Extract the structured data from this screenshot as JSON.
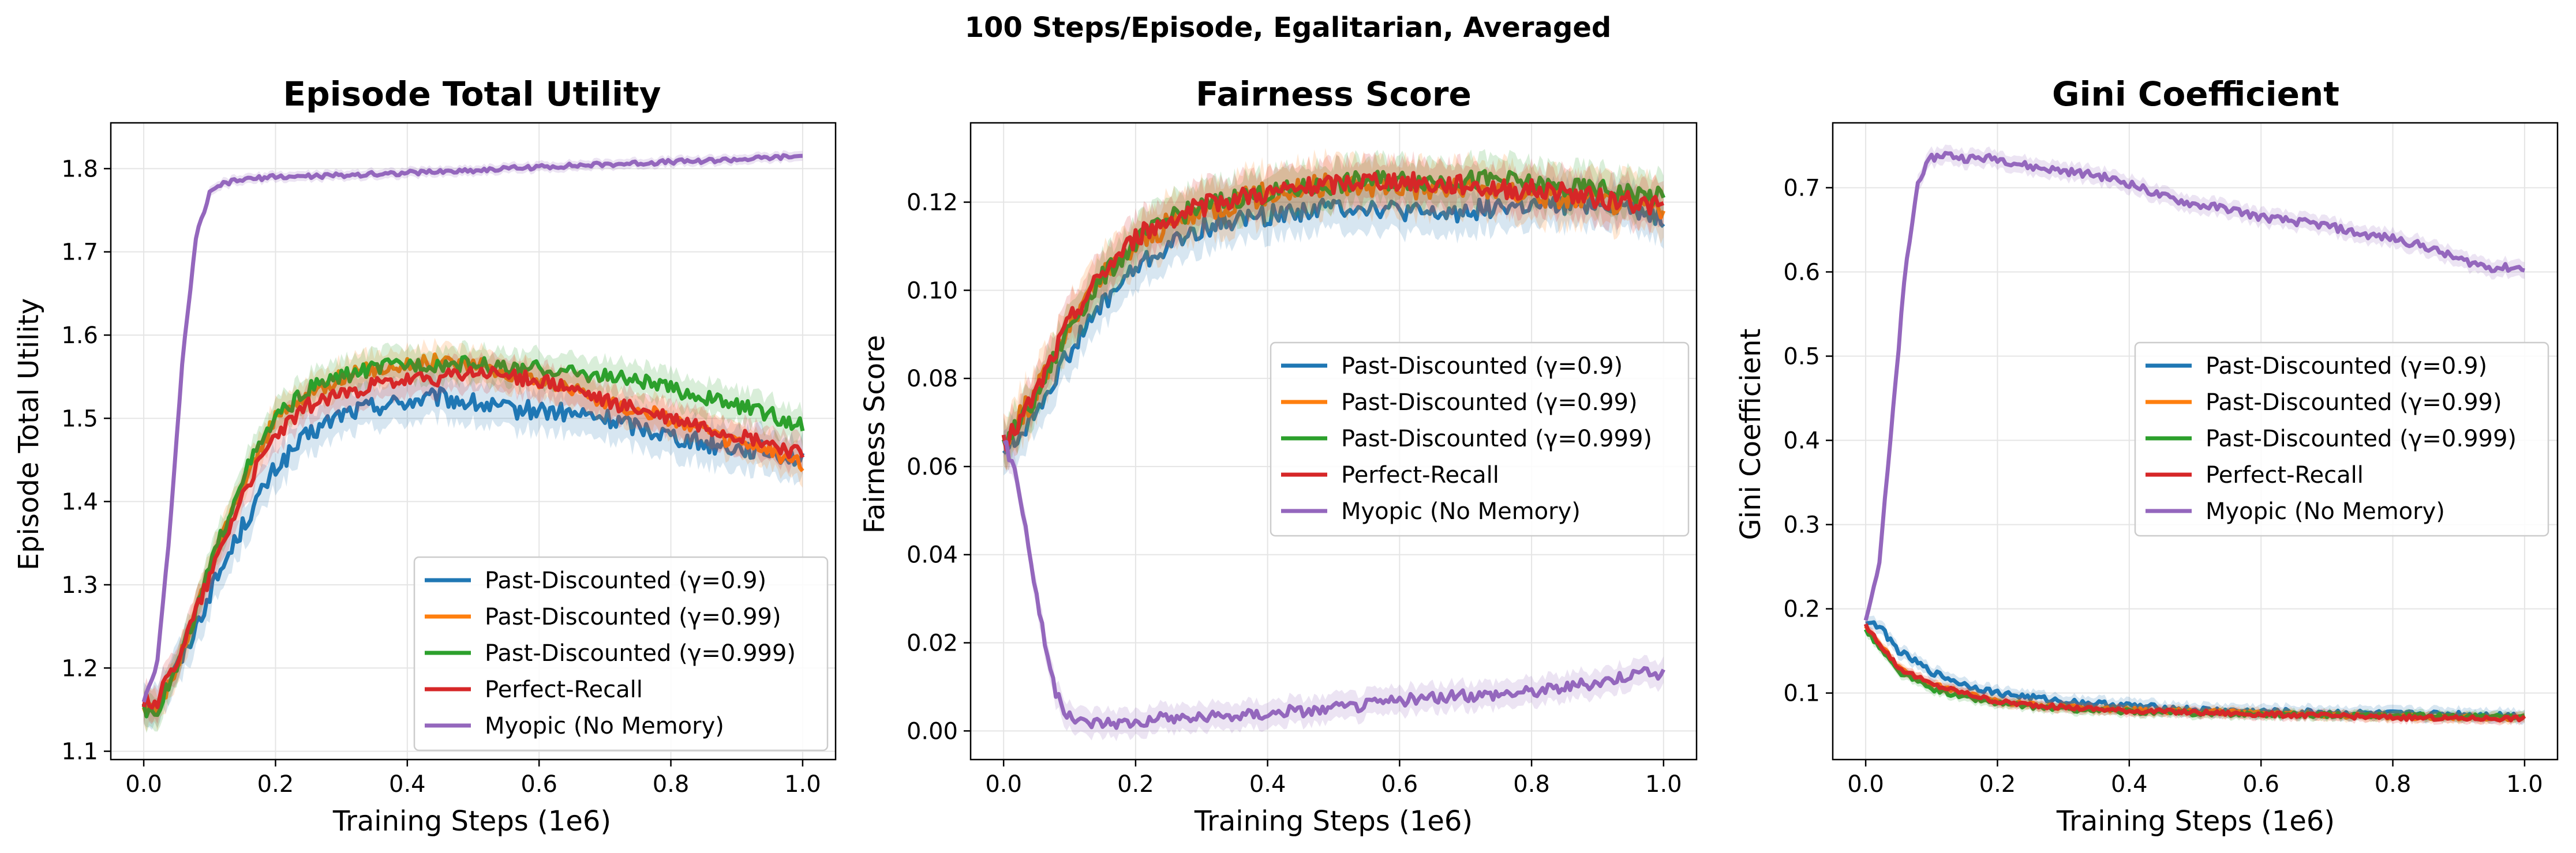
{
  "figure_title": "100 Steps/Episode, Egalitarian, Averaged",
  "series_colors": {
    "Past-Discounted (γ=0.9)": "#1f77b4",
    "Past-Discounted (γ=0.99)": "#ff7f0e",
    "Past-Discounted (γ=0.999)": "#2ca02c",
    "Perfect-Recall": "#d62728",
    "Myopic (No Memory)": "#9467bd"
  },
  "chart_data": [
    {
      "type": "line",
      "title": "Episode Total Utility",
      "xlabel": "Training Steps (1e6)",
      "ylabel": "Episode Total Utility",
      "xlim": [
        -0.05,
        1.05
      ],
      "ylim": [
        1.09,
        1.855
      ],
      "xticks": [
        "0.0",
        "0.2",
        "0.4",
        "0.6",
        "0.8",
        "1.0"
      ],
      "yticks": [
        "1.1",
        "1.2",
        "1.3",
        "1.4",
        "1.5",
        "1.6",
        "1.7",
        "1.8"
      ],
      "grid": true,
      "legend": "lower-right",
      "series": [
        {
          "name": "Past-Discounted (γ=0.9)",
          "band": 0.025,
          "x": [
            0,
            0.02,
            0.05,
            0.08,
            0.1,
            0.15,
            0.2,
            0.25,
            0.3,
            0.35,
            0.4,
            0.45,
            0.5,
            0.55,
            0.6,
            0.65,
            0.7,
            0.75,
            0.8,
            0.85,
            0.9,
            0.95,
            1.0
          ],
          "y": [
            1.16,
            1.16,
            1.2,
            1.25,
            1.29,
            1.37,
            1.44,
            1.48,
            1.505,
            1.515,
            1.52,
            1.525,
            1.518,
            1.51,
            1.51,
            1.505,
            1.5,
            1.49,
            1.48,
            1.47,
            1.465,
            1.46,
            1.45
          ]
        },
        {
          "name": "Past-Discounted (γ=0.99)",
          "band": 0.02,
          "x": [
            0,
            0.02,
            0.05,
            0.08,
            0.1,
            0.15,
            0.2,
            0.25,
            0.3,
            0.35,
            0.4,
            0.45,
            0.5,
            0.55,
            0.6,
            0.65,
            0.7,
            0.75,
            0.8,
            0.85,
            0.9,
            0.95,
            1.0
          ],
          "y": [
            1.15,
            1.15,
            1.2,
            1.27,
            1.32,
            1.42,
            1.5,
            1.53,
            1.55,
            1.56,
            1.565,
            1.57,
            1.565,
            1.555,
            1.545,
            1.535,
            1.52,
            1.51,
            1.5,
            1.485,
            1.47,
            1.46,
            1.445
          ]
        },
        {
          "name": "Past-Discounted (γ=0.999)",
          "band": 0.02,
          "x": [
            0,
            0.02,
            0.05,
            0.08,
            0.1,
            0.15,
            0.2,
            0.25,
            0.3,
            0.35,
            0.4,
            0.45,
            0.5,
            0.55,
            0.6,
            0.65,
            0.7,
            0.75,
            0.8,
            0.85,
            0.9,
            0.95,
            1.0
          ],
          "y": [
            1.15,
            1.15,
            1.2,
            1.27,
            1.32,
            1.43,
            1.5,
            1.535,
            1.55,
            1.56,
            1.565,
            1.565,
            1.565,
            1.56,
            1.56,
            1.555,
            1.55,
            1.545,
            1.535,
            1.525,
            1.515,
            1.505,
            1.49
          ]
        },
        {
          "name": "Perfect-Recall",
          "band": 0.02,
          "x": [
            0,
            0.02,
            0.05,
            0.08,
            0.1,
            0.15,
            0.2,
            0.25,
            0.3,
            0.35,
            0.4,
            0.45,
            0.5,
            0.55,
            0.6,
            0.65,
            0.7,
            0.75,
            0.8,
            0.85,
            0.9,
            0.95,
            1.0
          ],
          "y": [
            1.16,
            1.16,
            1.21,
            1.27,
            1.31,
            1.41,
            1.48,
            1.515,
            1.53,
            1.54,
            1.545,
            1.548,
            1.555,
            1.552,
            1.545,
            1.535,
            1.52,
            1.51,
            1.5,
            1.49,
            1.48,
            1.47,
            1.455
          ]
        },
        {
          "name": "Myopic (No Memory)",
          "band": 0.006,
          "x": [
            0,
            0.02,
            0.04,
            0.06,
            0.08,
            0.1,
            0.12,
            0.15,
            0.2,
            0.3,
            0.4,
            0.5,
            0.6,
            0.7,
            0.8,
            0.9,
            1.0
          ],
          "y": [
            1.16,
            1.2,
            1.37,
            1.58,
            1.72,
            1.77,
            1.782,
            1.787,
            1.79,
            1.792,
            1.795,
            1.798,
            1.802,
            1.805,
            1.808,
            1.811,
            1.815
          ]
        }
      ]
    },
    {
      "type": "line",
      "title": "Fairness Score",
      "xlabel": "Training Steps (1e6)",
      "ylabel": "Fairness Score",
      "xlim": [
        -0.05,
        1.05
      ],
      "ylim": [
        -0.0065,
        0.138
      ],
      "xticks": [
        "0.0",
        "0.2",
        "0.4",
        "0.6",
        "0.8",
        "1.0"
      ],
      "yticks": [
        "0.00",
        "0.02",
        "0.04",
        "0.06",
        "0.08",
        "0.10",
        "0.12"
      ],
      "grid": true,
      "legend": "center-right",
      "series": [
        {
          "name": "Past-Discounted (γ=0.9)",
          "band": 0.005,
          "x": [
            0,
            0.02,
            0.05,
            0.1,
            0.15,
            0.2,
            0.25,
            0.3,
            0.35,
            0.4,
            0.45,
            0.5,
            0.55,
            0.6,
            0.65,
            0.7,
            0.75,
            0.8,
            0.85,
            0.9,
            0.95,
            1.0
          ],
          "y": [
            0.064,
            0.066,
            0.073,
            0.086,
            0.097,
            0.105,
            0.11,
            0.114,
            0.116,
            0.117,
            0.118,
            0.119,
            0.119,
            0.118,
            0.117,
            0.118,
            0.119,
            0.119,
            0.119,
            0.12,
            0.119,
            0.116
          ]
        },
        {
          "name": "Past-Discounted (γ=0.99)",
          "band": 0.006,
          "x": [
            0,
            0.02,
            0.05,
            0.1,
            0.15,
            0.2,
            0.25,
            0.3,
            0.35,
            0.4,
            0.45,
            0.5,
            0.55,
            0.6,
            0.65,
            0.7,
            0.75,
            0.8,
            0.85,
            0.9,
            0.95,
            1.0
          ],
          "y": [
            0.066,
            0.07,
            0.077,
            0.092,
            0.103,
            0.11,
            0.115,
            0.118,
            0.12,
            0.122,
            0.123,
            0.124,
            0.124,
            0.124,
            0.123,
            0.123,
            0.123,
            0.122,
            0.121,
            0.12,
            0.12,
            0.119
          ]
        },
        {
          "name": "Past-Discounted (γ=0.999)",
          "band": 0.005,
          "x": [
            0,
            0.02,
            0.05,
            0.1,
            0.15,
            0.2,
            0.25,
            0.3,
            0.35,
            0.4,
            0.45,
            0.5,
            0.55,
            0.6,
            0.65,
            0.7,
            0.75,
            0.8,
            0.85,
            0.9,
            0.95,
            1.0
          ],
          "y": [
            0.065,
            0.069,
            0.076,
            0.092,
            0.103,
            0.111,
            0.116,
            0.119,
            0.121,
            0.122,
            0.123,
            0.124,
            0.125,
            0.125,
            0.125,
            0.125,
            0.125,
            0.124,
            0.123,
            0.123,
            0.122,
            0.121
          ]
        },
        {
          "name": "Perfect-Recall",
          "band": 0.005,
          "x": [
            0,
            0.02,
            0.05,
            0.1,
            0.15,
            0.2,
            0.25,
            0.3,
            0.35,
            0.4,
            0.45,
            0.5,
            0.55,
            0.6,
            0.65,
            0.7,
            0.75,
            0.8,
            0.85,
            0.9,
            0.95,
            1.0
          ],
          "y": [
            0.065,
            0.069,
            0.077,
            0.093,
            0.104,
            0.112,
            0.116,
            0.119,
            0.121,
            0.122,
            0.123,
            0.124,
            0.125,
            0.125,
            0.124,
            0.124,
            0.123,
            0.123,
            0.122,
            0.121,
            0.12,
            0.119
          ]
        },
        {
          "name": "Myopic (No Memory)",
          "band": 0.003,
          "x": [
            0,
            0.02,
            0.04,
            0.06,
            0.08,
            0.1,
            0.12,
            0.15,
            0.2,
            0.25,
            0.3,
            0.4,
            0.5,
            0.6,
            0.7,
            0.8,
            0.9,
            0.95,
            1.0
          ],
          "y": [
            0.066,
            0.058,
            0.04,
            0.022,
            0.008,
            0.003,
            0.002,
            0.002,
            0.002,
            0.003,
            0.003,
            0.004,
            0.005,
            0.007,
            0.008,
            0.009,
            0.011,
            0.013,
            0.013
          ]
        }
      ]
    },
    {
      "type": "line",
      "title": "Gini Coefficient",
      "xlabel": "Training Steps (1e6)",
      "ylabel": "Gini Coefficient",
      "xlim": [
        -0.05,
        1.05
      ],
      "ylim": [
        0.021,
        0.777
      ],
      "xticks": [
        "0.0",
        "0.2",
        "0.4",
        "0.6",
        "0.8",
        "1.0"
      ],
      "yticks": [
        "0.1",
        "0.2",
        "0.3",
        "0.4",
        "0.5",
        "0.6",
        "0.7"
      ],
      "grid": true,
      "legend": "center-right",
      "series": [
        {
          "name": "Past-Discounted (γ=0.9)",
          "band": 0.008,
          "x": [
            0,
            0.02,
            0.05,
            0.1,
            0.15,
            0.2,
            0.25,
            0.3,
            0.4,
            0.5,
            0.6,
            0.7,
            0.8,
            0.9,
            1.0
          ],
          "y": [
            0.185,
            0.18,
            0.15,
            0.125,
            0.11,
            0.1,
            0.095,
            0.09,
            0.085,
            0.08,
            0.078,
            0.077,
            0.075,
            0.075,
            0.073
          ]
        },
        {
          "name": "Past-Discounted (γ=0.99)",
          "band": 0.006,
          "x": [
            0,
            0.02,
            0.05,
            0.1,
            0.15,
            0.2,
            0.25,
            0.3,
            0.4,
            0.5,
            0.6,
            0.7,
            0.8,
            0.9,
            1.0
          ],
          "y": [
            0.18,
            0.16,
            0.13,
            0.11,
            0.1,
            0.09,
            0.086,
            0.083,
            0.08,
            0.078,
            0.076,
            0.074,
            0.072,
            0.071,
            0.07
          ]
        },
        {
          "name": "Past-Discounted (γ=0.999)",
          "band": 0.006,
          "x": [
            0,
            0.02,
            0.05,
            0.1,
            0.15,
            0.2,
            0.25,
            0.3,
            0.4,
            0.5,
            0.6,
            0.7,
            0.8,
            0.9,
            1.0
          ],
          "y": [
            0.175,
            0.155,
            0.125,
            0.105,
            0.095,
            0.088,
            0.084,
            0.081,
            0.078,
            0.076,
            0.075,
            0.074,
            0.073,
            0.072,
            0.072
          ]
        },
        {
          "name": "Perfect-Recall",
          "band": 0.006,
          "x": [
            0,
            0.02,
            0.05,
            0.1,
            0.15,
            0.2,
            0.25,
            0.3,
            0.4,
            0.5,
            0.6,
            0.7,
            0.8,
            0.9,
            1.0
          ],
          "y": [
            0.18,
            0.16,
            0.13,
            0.11,
            0.1,
            0.09,
            0.086,
            0.083,
            0.079,
            0.077,
            0.075,
            0.073,
            0.071,
            0.07,
            0.07
          ]
        },
        {
          "name": "Myopic (No Memory)",
          "band": 0.01,
          "x": [
            0,
            0.02,
            0.04,
            0.06,
            0.08,
            0.1,
            0.12,
            0.15,
            0.2,
            0.25,
            0.3,
            0.35,
            0.4,
            0.45,
            0.5,
            0.55,
            0.6,
            0.65,
            0.7,
            0.75,
            0.8,
            0.85,
            0.9,
            0.95,
            1.0
          ],
          "y": [
            0.19,
            0.25,
            0.42,
            0.6,
            0.71,
            0.735,
            0.74,
            0.735,
            0.735,
            0.725,
            0.72,
            0.715,
            0.705,
            0.69,
            0.68,
            0.675,
            0.665,
            0.66,
            0.655,
            0.645,
            0.64,
            0.63,
            0.615,
            0.605,
            0.605
          ]
        }
      ]
    }
  ]
}
